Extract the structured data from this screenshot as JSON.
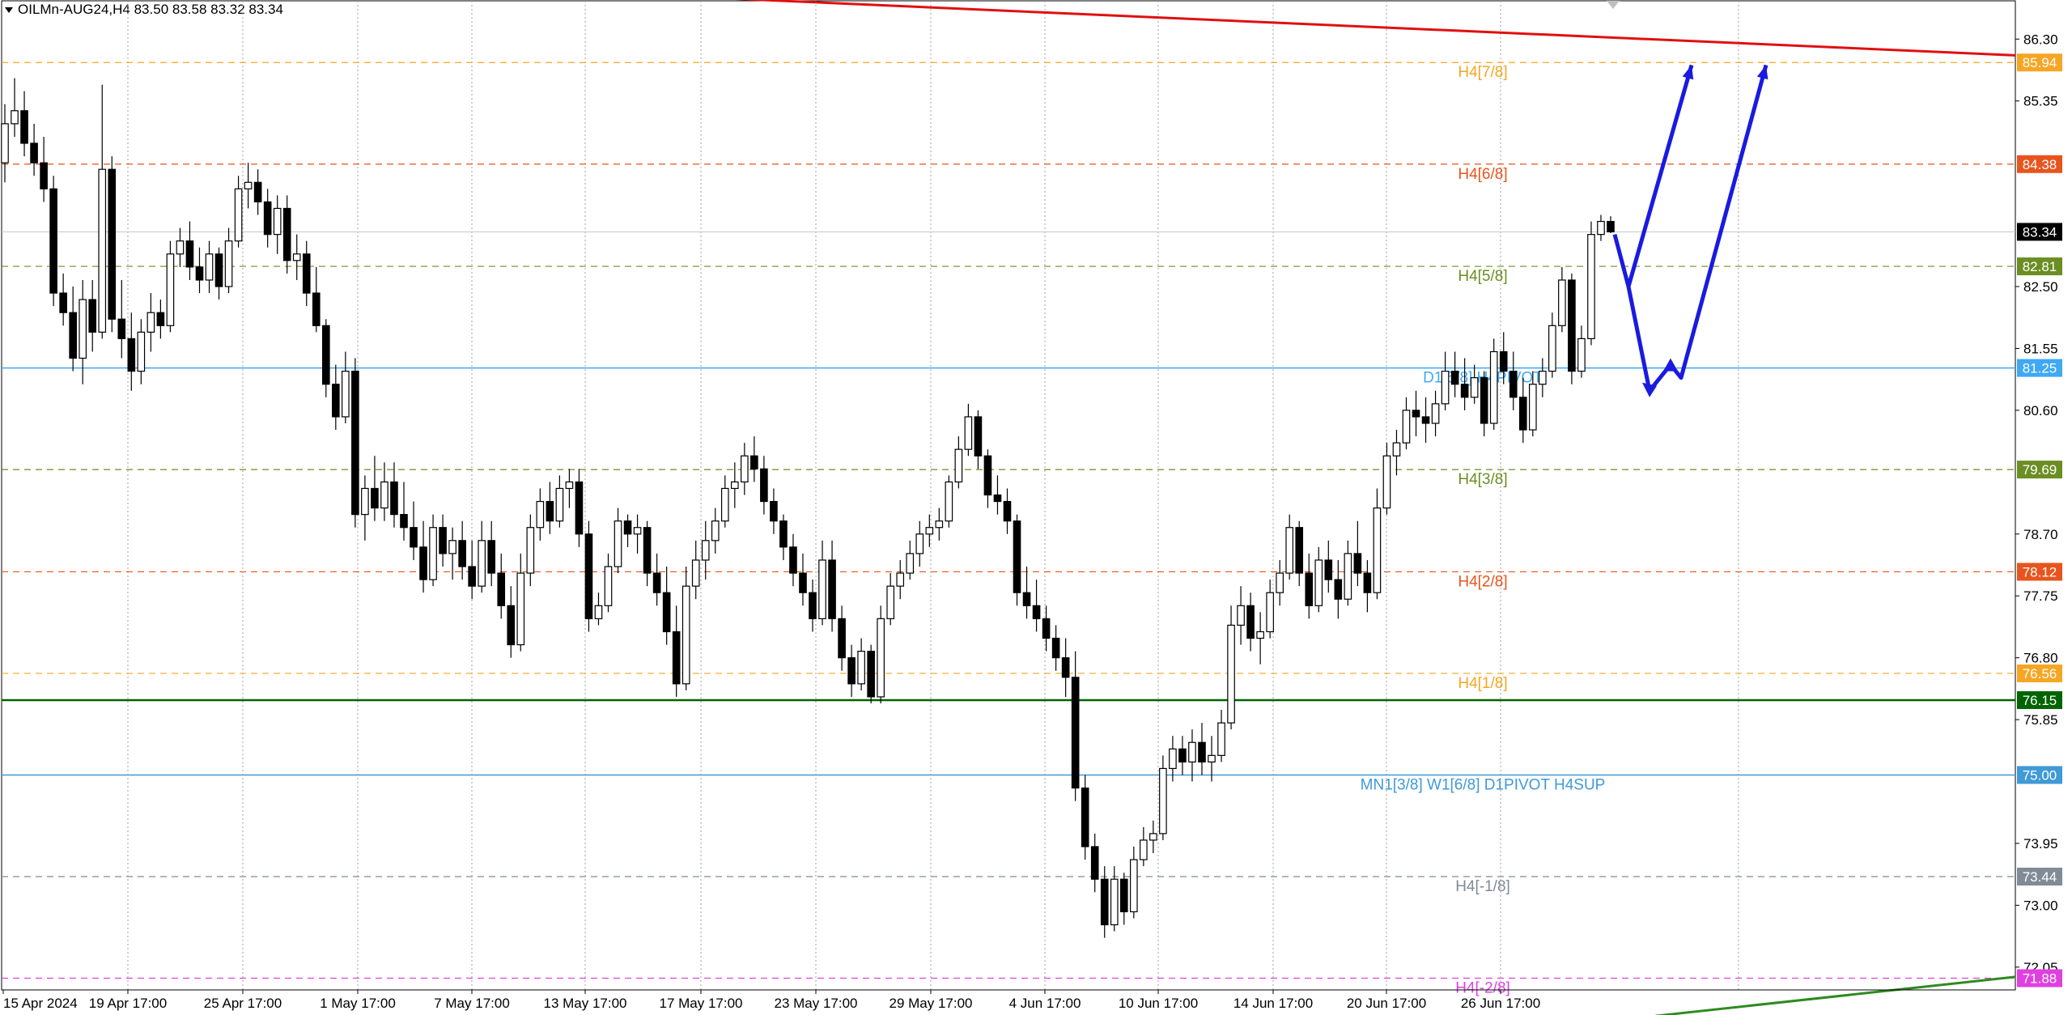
{
  "header": {
    "symbol_line": "OILMn-AUG24,H4  83.50 83.58 83.32 83.34"
  },
  "chart_data": {
    "type": "candlestick",
    "symbol": "OILMn-AUG24",
    "timeframe": "H4",
    "ohlc": {
      "open": 83.5,
      "high": 83.58,
      "low": 83.32,
      "close": 83.34
    },
    "ylim": [
      71.7,
      86.9
    ],
    "y_ticks": [
      86.3,
      85.35,
      82.5,
      81.55,
      80.6,
      78.7,
      77.75,
      76.8,
      75.85,
      73.95,
      73.0,
      72.05
    ],
    "x_ticks": [
      "15 Apr 2024",
      "19 Apr 17:00",
      "25 Apr 17:00",
      "1 May 17:00",
      "7 May 17:00",
      "13 May 17:00",
      "17 May 17:00",
      "23 May 17:00",
      "29 May 17:00",
      "4 Jun 17:00",
      "10 Jun 17:00",
      "14 Jun 17:00",
      "20 Jun 17:00",
      "26 Jun 17:00"
    ],
    "current_price": {
      "label": "83.34",
      "value": 83.34,
      "color": "#000000"
    },
    "levels": [
      {
        "value": 85.94,
        "name": "H4[7/8]",
        "label": "85.94",
        "color": "#f5a623",
        "style": "dashed"
      },
      {
        "value": 84.38,
        "name": "H4[6/8]",
        "label": "84.38",
        "color": "#e8541d",
        "style": "dashed"
      },
      {
        "value": 82.81,
        "name": "H4[5/8]",
        "label": "82.81",
        "color": "#6b8e23",
        "style": "dashed"
      },
      {
        "value": 81.25,
        "name": "D1[5/8] H4PIVOT",
        "label": "81.25",
        "color": "#3fa9f5",
        "style": "solid"
      },
      {
        "value": 79.69,
        "name": "H4[3/8]",
        "label": "79.69",
        "color": "#6b8e23",
        "style": "dashed"
      },
      {
        "value": 78.12,
        "name": "H4[2/8]",
        "label": "78.12",
        "color": "#e8541d",
        "style": "dashed"
      },
      {
        "value": 76.56,
        "name": "H4[1/8]",
        "label": "76.56",
        "color": "#f5a623",
        "style": "dashed"
      },
      {
        "value": 76.15,
        "name": "",
        "label": "76.15",
        "color": "#006400",
        "style": "solid"
      },
      {
        "value": 75.0,
        "name": "MN1[3/8] W1[6/8] D1PIVOT H4SUP",
        "label": "75.00",
        "color": "#3f9ad6",
        "style": "solid"
      },
      {
        "value": 73.44,
        "name": "H4[-1/8]",
        "label": "73.44",
        "color": "#808b96",
        "style": "dashed"
      },
      {
        "value": 71.88,
        "name": "H4[-2/8]",
        "label": "71.88",
        "color": "#e040e0",
        "style": "dashed"
      }
    ],
    "trendlines": [
      {
        "name": "resistance-trendline",
        "color": "#e01010",
        "from": {
          "x": "20 Apr 2024",
          "y": 87.0
        },
        "to": {
          "x": "30 Jun 2024",
          "y": 86.05
        }
      },
      {
        "name": "support-trendline",
        "color": "#2e8b20",
        "from": {
          "x": "28 Jun 2024",
          "y": 71.3
        },
        "to": {
          "x": "30 Jun 2024",
          "y": 71.9
        }
      }
    ],
    "forecast_arrows": [
      {
        "name": "forecast-arrow-1",
        "color": "#1a1ae0",
        "points": [
          [
            0,
            83.3
          ],
          [
            1,
            82.5
          ],
          [
            2,
            85.9
          ]
        ]
      },
      {
        "name": "forecast-arrow-2",
        "color": "#1a1ae0",
        "points": [
          [
            0,
            82.5
          ],
          [
            1,
            80.9
          ],
          [
            2,
            81.3
          ],
          [
            3,
            81.1
          ],
          [
            4,
            85.9
          ]
        ]
      }
    ],
    "candles": [
      [
        84.4,
        85.3,
        84.1,
        85.0
      ],
      [
        85.0,
        85.7,
        84.8,
        85.2
      ],
      [
        85.2,
        85.5,
        84.5,
        84.7
      ],
      [
        84.7,
        85.0,
        84.2,
        84.4
      ],
      [
        84.4,
        84.8,
        83.8,
        84.0
      ],
      [
        84.0,
        84.2,
        82.2,
        82.4
      ],
      [
        82.4,
        82.7,
        81.9,
        82.1
      ],
      [
        82.1,
        82.5,
        81.2,
        81.4
      ],
      [
        81.4,
        82.6,
        81.0,
        82.3
      ],
      [
        82.3,
        82.6,
        81.5,
        81.8
      ],
      [
        81.8,
        85.6,
        81.7,
        84.3
      ],
      [
        84.3,
        84.5,
        81.8,
        82.0
      ],
      [
        82.0,
        82.6,
        81.4,
        81.7
      ],
      [
        81.7,
        82.1,
        80.9,
        81.2
      ],
      [
        81.2,
        82.0,
        81.0,
        81.8
      ],
      [
        81.8,
        82.4,
        81.5,
        82.1
      ],
      [
        82.1,
        82.3,
        81.7,
        81.9
      ],
      [
        81.9,
        83.2,
        81.8,
        83.0
      ],
      [
        83.0,
        83.4,
        82.8,
        83.2
      ],
      [
        83.2,
        83.5,
        82.6,
        82.8
      ],
      [
        82.8,
        83.1,
        82.4,
        82.6
      ],
      [
        82.6,
        83.2,
        82.4,
        83.0
      ],
      [
        83.0,
        83.1,
        82.3,
        82.5
      ],
      [
        82.5,
        83.4,
        82.4,
        83.2
      ],
      [
        83.2,
        84.2,
        83.1,
        84.0
      ],
      [
        84.0,
        84.4,
        83.7,
        84.1
      ],
      [
        84.1,
        84.3,
        83.6,
        83.8
      ],
      [
        83.8,
        84.0,
        83.1,
        83.3
      ],
      [
        83.3,
        83.9,
        83.0,
        83.7
      ],
      [
        83.7,
        83.9,
        82.7,
        82.9
      ],
      [
        82.9,
        83.3,
        82.6,
        83.0
      ],
      [
        83.0,
        83.2,
        82.2,
        82.4
      ],
      [
        82.4,
        82.8,
        81.8,
        81.9
      ],
      [
        81.9,
        82.0,
        80.8,
        81.0
      ],
      [
        81.0,
        81.3,
        80.3,
        80.5
      ],
      [
        80.5,
        81.5,
        80.4,
        81.2
      ],
      [
        81.2,
        81.4,
        78.8,
        79.0
      ],
      [
        79.0,
        79.6,
        78.6,
        79.4
      ],
      [
        79.4,
        79.9,
        78.9,
        79.1
      ],
      [
        79.1,
        79.8,
        78.9,
        79.5
      ],
      [
        79.5,
        79.8,
        78.8,
        79.0
      ],
      [
        79.0,
        79.5,
        78.6,
        78.8
      ],
      [
        78.8,
        79.2,
        78.3,
        78.5
      ],
      [
        78.5,
        78.9,
        77.8,
        78.0
      ],
      [
        78.0,
        79.0,
        77.9,
        78.8
      ],
      [
        78.8,
        79.0,
        78.2,
        78.4
      ],
      [
        78.4,
        78.8,
        78.0,
        78.6
      ],
      [
        78.6,
        78.9,
        78.0,
        78.2
      ],
      [
        78.2,
        78.6,
        77.7,
        77.9
      ],
      [
        77.9,
        78.9,
        77.8,
        78.6
      ],
      [
        78.6,
        78.9,
        77.9,
        78.1
      ],
      [
        78.1,
        78.4,
        77.4,
        77.6
      ],
      [
        77.6,
        77.9,
        76.8,
        77.0
      ],
      [
        77.0,
        78.4,
        76.9,
        78.1
      ],
      [
        78.1,
        79.0,
        77.9,
        78.8
      ],
      [
        78.8,
        79.4,
        78.6,
        79.2
      ],
      [
        79.2,
        79.5,
        78.7,
        78.9
      ],
      [
        78.9,
        79.6,
        78.8,
        79.4
      ],
      [
        79.4,
        79.7,
        79.1,
        79.5
      ],
      [
        79.5,
        79.7,
        78.5,
        78.7
      ],
      [
        78.7,
        78.9,
        77.2,
        77.4
      ],
      [
        77.4,
        77.8,
        77.3,
        77.6
      ],
      [
        77.6,
        78.4,
        77.5,
        78.2
      ],
      [
        78.2,
        79.1,
        78.1,
        78.9
      ],
      [
        78.9,
        79.0,
        78.5,
        78.7
      ],
      [
        78.7,
        79.0,
        78.4,
        78.8
      ],
      [
        78.8,
        78.9,
        77.9,
        78.1
      ],
      [
        78.1,
        78.4,
        77.6,
        77.8
      ],
      [
        77.8,
        78.2,
        77.0,
        77.2
      ],
      [
        77.2,
        77.6,
        76.2,
        76.4
      ],
      [
        76.4,
        78.2,
        76.3,
        77.9
      ],
      [
        77.9,
        78.6,
        77.7,
        78.3
      ],
      [
        78.3,
        78.9,
        78.0,
        78.6
      ],
      [
        78.6,
        79.1,
        78.4,
        78.9
      ],
      [
        78.9,
        79.6,
        78.8,
        79.4
      ],
      [
        79.4,
        79.8,
        79.1,
        79.5
      ],
      [
        79.5,
        80.1,
        79.3,
        79.9
      ],
      [
        79.9,
        80.2,
        79.5,
        79.7
      ],
      [
        79.7,
        79.9,
        79.0,
        79.2
      ],
      [
        79.2,
        79.4,
        78.7,
        78.9
      ],
      [
        78.9,
        79.0,
        78.3,
        78.5
      ],
      [
        78.5,
        78.7,
        77.9,
        78.1
      ],
      [
        78.1,
        78.4,
        77.6,
        77.8
      ],
      [
        77.8,
        78.0,
        77.2,
        77.4
      ],
      [
        77.4,
        78.6,
        77.3,
        78.3
      ],
      [
        78.3,
        78.6,
        77.2,
        77.4
      ],
      [
        77.4,
        77.6,
        76.6,
        76.8
      ],
      [
        76.8,
        77.0,
        76.2,
        76.4
      ],
      [
        76.4,
        77.1,
        76.3,
        76.9
      ],
      [
        76.9,
        77.0,
        76.1,
        76.2
      ],
      [
        76.2,
        77.6,
        76.1,
        77.4
      ],
      [
        77.4,
        78.1,
        77.3,
        77.9
      ],
      [
        77.9,
        78.3,
        77.7,
        78.1
      ],
      [
        78.1,
        78.6,
        78.0,
        78.4
      ],
      [
        78.4,
        78.9,
        78.2,
        78.7
      ],
      [
        78.7,
        79.0,
        78.5,
        78.8
      ],
      [
        78.8,
        79.1,
        78.6,
        78.9
      ],
      [
        78.9,
        79.6,
        78.8,
        79.5
      ],
      [
        79.5,
        80.2,
        79.4,
        80.0
      ],
      [
        80.0,
        80.7,
        79.9,
        80.5
      ],
      [
        80.5,
        80.6,
        79.7,
        79.9
      ],
      [
        79.9,
        80.0,
        79.1,
        79.3
      ],
      [
        79.3,
        79.6,
        79.0,
        79.2
      ],
      [
        79.2,
        79.4,
        78.7,
        78.9
      ],
      [
        78.9,
        79.0,
        77.6,
        77.8
      ],
      [
        77.8,
        78.2,
        77.4,
        77.6
      ],
      [
        77.6,
        78.0,
        77.2,
        77.4
      ],
      [
        77.4,
        77.6,
        76.9,
        77.1
      ],
      [
        77.1,
        77.3,
        76.6,
        76.8
      ],
      [
        76.8,
        77.1,
        76.2,
        76.5
      ],
      [
        76.5,
        76.9,
        74.6,
        74.8
      ],
      [
        74.8,
        75.0,
        73.7,
        73.9
      ],
      [
        73.9,
        74.1,
        73.2,
        73.4
      ],
      [
        73.4,
        73.6,
        72.5,
        72.7
      ],
      [
        72.7,
        73.6,
        72.6,
        73.4
      ],
      [
        73.4,
        73.5,
        72.7,
        72.9
      ],
      [
        72.9,
        73.9,
        72.8,
        73.7
      ],
      [
        73.7,
        74.2,
        73.6,
        74.0
      ],
      [
        74.0,
        74.3,
        73.8,
        74.1
      ],
      [
        74.1,
        75.3,
        74.0,
        75.1
      ],
      [
        75.1,
        75.6,
        74.9,
        75.4
      ],
      [
        75.4,
        75.6,
        75.0,
        75.2
      ],
      [
        75.2,
        75.7,
        74.9,
        75.5
      ],
      [
        75.5,
        75.8,
        75.0,
        75.2
      ],
      [
        75.2,
        75.6,
        74.9,
        75.3
      ],
      [
        75.3,
        76.0,
        75.2,
        75.8
      ],
      [
        75.8,
        77.6,
        75.7,
        77.3
      ],
      [
        77.3,
        77.9,
        77.0,
        77.6
      ],
      [
        77.6,
        77.8,
        76.9,
        77.1
      ],
      [
        77.1,
        77.5,
        76.7,
        77.2
      ],
      [
        77.2,
        78.0,
        77.1,
        77.8
      ],
      [
        77.8,
        78.3,
        77.6,
        78.1
      ],
      [
        78.1,
        79.0,
        78.0,
        78.8
      ],
      [
        78.8,
        78.9,
        77.9,
        78.1
      ],
      [
        78.1,
        78.4,
        77.4,
        77.6
      ],
      [
        77.6,
        78.5,
        77.5,
        78.3
      ],
      [
        78.3,
        78.6,
        77.8,
        78.0
      ],
      [
        78.0,
        78.3,
        77.4,
        77.7
      ],
      [
        77.7,
        78.6,
        77.6,
        78.4
      ],
      [
        78.4,
        78.9,
        77.9,
        78.1
      ],
      [
        78.1,
        78.3,
        77.5,
        77.8
      ],
      [
        77.8,
        79.4,
        77.7,
        79.1
      ],
      [
        79.1,
        80.1,
        79.0,
        79.9
      ],
      [
        79.9,
        80.3,
        79.6,
        80.1
      ],
      [
        80.1,
        80.8,
        80.0,
        80.6
      ],
      [
        80.6,
        80.9,
        80.2,
        80.5
      ],
      [
        80.5,
        80.8,
        80.1,
        80.4
      ],
      [
        80.4,
        80.9,
        80.2,
        80.7
      ],
      [
        80.7,
        81.5,
        80.6,
        81.2
      ],
      [
        81.2,
        81.5,
        80.8,
        81.0
      ],
      [
        81.0,
        81.4,
        80.6,
        80.8
      ],
      [
        80.8,
        81.3,
        80.7,
        81.1
      ],
      [
        81.1,
        81.2,
        80.2,
        80.4
      ],
      [
        80.4,
        81.7,
        80.3,
        81.5
      ],
      [
        81.5,
        81.8,
        81.0,
        81.2
      ],
      [
        81.2,
        81.5,
        80.6,
        80.8
      ],
      [
        80.8,
        81.1,
        80.1,
        80.3
      ],
      [
        80.3,
        81.2,
        80.2,
        81.0
      ],
      [
        81.0,
        81.4,
        80.8,
        81.2
      ],
      [
        81.2,
        82.1,
        81.1,
        81.9
      ],
      [
        81.9,
        82.8,
        81.8,
        82.6
      ],
      [
        82.6,
        82.7,
        81.0,
        81.2
      ],
      [
        81.2,
        81.9,
        81.1,
        81.7
      ],
      [
        81.7,
        83.5,
        81.6,
        83.3
      ],
      [
        83.3,
        83.6,
        83.2,
        83.5
      ],
      [
        83.5,
        83.58,
        83.32,
        83.34
      ]
    ]
  }
}
